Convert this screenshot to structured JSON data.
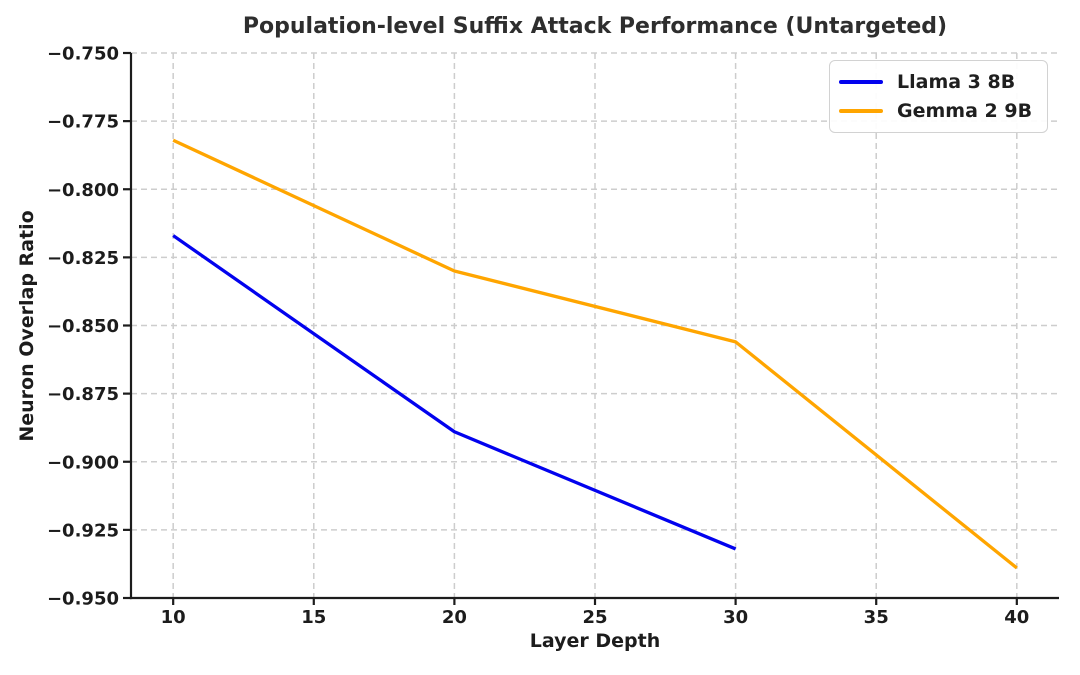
{
  "figure": {
    "title": "Population-level Suffix Attack Performance (Untargeted)"
  },
  "chart_data": {
    "type": "line",
    "title": "Population-level Suffix Attack Performance (Untargeted)",
    "xlabel": "Layer Depth",
    "ylabel": "Neuron Overlap Ratio",
    "xlim": [
      8.5,
      41.5
    ],
    "ylim": [
      -0.95,
      -0.75
    ],
    "x_ticks": [
      10,
      15,
      20,
      25,
      30,
      35,
      40
    ],
    "x_tick_labels": [
      "10",
      "15",
      "20",
      "25",
      "30",
      "35",
      "40"
    ],
    "y_ticks": [
      -0.95,
      -0.925,
      -0.9,
      -0.875,
      -0.85,
      -0.825,
      -0.8,
      -0.775,
      -0.75
    ],
    "y_tick_labels": [
      "−0.950",
      "−0.925",
      "−0.900",
      "−0.875",
      "−0.850",
      "−0.825",
      "−0.800",
      "−0.775",
      "−0.750"
    ],
    "grid": true,
    "grid_style": "dashed",
    "legend_position": "upper right",
    "colors": {
      "grid": "#cdcdcd",
      "spine": "#1c1c1c",
      "tick_text": "#1c1c1c",
      "title_text": "#2e2e2e",
      "background": "#ffffff"
    },
    "series": [
      {
        "name": "Llama 3 8B",
        "color": "#0202ee",
        "x": [
          10,
          20,
          30
        ],
        "y": [
          -0.817,
          -0.889,
          -0.932
        ]
      },
      {
        "name": "Gemma 2 9B",
        "color": "#ffa500",
        "x": [
          10,
          20,
          30,
          40
        ],
        "y": [
          -0.782,
          -0.83,
          -0.856,
          -0.939
        ]
      }
    ]
  }
}
